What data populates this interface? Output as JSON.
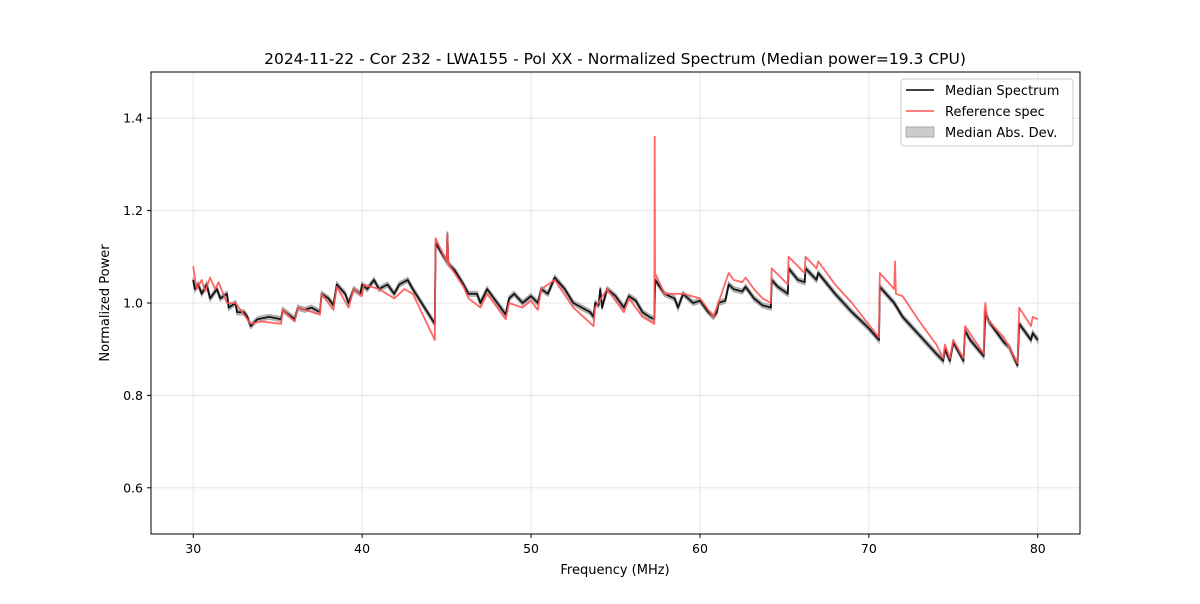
{
  "chart_data": {
    "type": "line",
    "title": "2024-11-22 - Cor 232 - LWA155 - Pol XX - Normalized Spectrum (Median power=19.3 CPU)",
    "xlabel": "Frequency (MHz)",
    "ylabel": "Normalized Power",
    "xlim": [
      27.5,
      82.5
    ],
    "ylim": [
      0.5,
      1.5
    ],
    "xticks": [
      30,
      40,
      50,
      60,
      70,
      80
    ],
    "xtick_labels": [
      "30",
      "40",
      "50",
      "60",
      "70",
      "80"
    ],
    "yticks": [
      0.6,
      0.8,
      1.0,
      1.2,
      1.4
    ],
    "ytick_labels": [
      "0.6",
      "0.8",
      "1.0",
      "1.2",
      "1.4"
    ],
    "grid": true,
    "legend_position": "top-right",
    "legend": [
      "Median Spectrum",
      "Reference spec",
      "Median Abs. Dev."
    ],
    "colors": {
      "median": "#000000",
      "reference": "#ff5555",
      "mad": "#aaaaaa"
    },
    "mad_halfwidth": 0.005,
    "series": [
      {
        "name": "Median Spectrum",
        "points": [
          [
            30.0,
            1.05
          ],
          [
            30.1,
            1.03
          ],
          [
            30.3,
            1.04
          ],
          [
            30.5,
            1.02
          ],
          [
            30.8,
            1.04
          ],
          [
            31.0,
            1.01
          ],
          [
            31.4,
            1.03
          ],
          [
            31.6,
            1.01
          ],
          [
            32.0,
            1.02
          ],
          [
            32.1,
            0.99
          ],
          [
            32.5,
            1.0
          ],
          [
            32.6,
            0.98
          ],
          [
            33.0,
            0.98
          ],
          [
            33.2,
            0.97
          ],
          [
            33.4,
            0.95
          ],
          [
            33.8,
            0.965
          ],
          [
            34.5,
            0.97
          ],
          [
            35.2,
            0.965
          ],
          [
            35.3,
            0.985
          ],
          [
            36.0,
            0.965
          ],
          [
            36.2,
            0.99
          ],
          [
            36.6,
            0.985
          ],
          [
            37.0,
            0.99
          ],
          [
            37.5,
            0.98
          ],
          [
            37.6,
            1.02
          ],
          [
            38.0,
            1.01
          ],
          [
            38.3,
            0.995
          ],
          [
            38.5,
            1.04
          ],
          [
            39.0,
            1.02
          ],
          [
            39.2,
            1.0
          ],
          [
            39.5,
            1.03
          ],
          [
            39.9,
            1.02
          ],
          [
            40.0,
            1.04
          ],
          [
            40.3,
            1.03
          ],
          [
            40.7,
            1.05
          ],
          [
            41.0,
            1.03
          ],
          [
            41.5,
            1.04
          ],
          [
            41.9,
            1.02
          ],
          [
            42.2,
            1.04
          ],
          [
            42.7,
            1.05
          ],
          [
            43.0,
            1.03
          ],
          [
            44.3,
            0.955
          ],
          [
            44.35,
            1.13
          ],
          [
            45.0,
            1.09
          ],
          [
            45.05,
            1.15
          ],
          [
            45.1,
            1.085
          ],
          [
            45.5,
            1.07
          ],
          [
            46.0,
            1.04
          ],
          [
            46.3,
            1.02
          ],
          [
            46.8,
            1.02
          ],
          [
            47.0,
            1.0
          ],
          [
            47.4,
            1.03
          ],
          [
            48.0,
            1.0
          ],
          [
            48.5,
            0.975
          ],
          [
            48.7,
            1.01
          ],
          [
            49.0,
            1.02
          ],
          [
            49.5,
            1.0
          ],
          [
            50.0,
            1.015
          ],
          [
            50.4,
            1.0
          ],
          [
            50.6,
            1.03
          ],
          [
            51.0,
            1.02
          ],
          [
            51.4,
            1.055
          ],
          [
            52.0,
            1.03
          ],
          [
            52.5,
            1.0
          ],
          [
            53.0,
            0.99
          ],
          [
            53.5,
            0.98
          ],
          [
            53.7,
            0.97
          ],
          [
            53.8,
            1.0
          ],
          [
            54.0,
            0.995
          ],
          [
            54.1,
            1.03
          ],
          [
            54.2,
            0.99
          ],
          [
            54.5,
            1.03
          ],
          [
            55.0,
            1.015
          ],
          [
            55.5,
            0.99
          ],
          [
            55.8,
            1.015
          ],
          [
            56.2,
            1.005
          ],
          [
            56.6,
            0.98
          ],
          [
            57.0,
            0.97
          ],
          [
            57.3,
            0.965
          ],
          [
            57.35,
            1.05
          ],
          [
            57.9,
            1.02
          ],
          [
            58.5,
            1.01
          ],
          [
            58.7,
            0.99
          ],
          [
            59.0,
            1.02
          ],
          [
            59.6,
            1.0
          ],
          [
            60.0,
            1.005
          ],
          [
            60.5,
            0.98
          ],
          [
            60.8,
            0.97
          ],
          [
            61.0,
            0.98
          ],
          [
            61.1,
            1.0
          ],
          [
            61.5,
            1.005
          ],
          [
            61.7,
            1.04
          ],
          [
            62.0,
            1.03
          ],
          [
            62.5,
            1.025
          ],
          [
            62.7,
            1.035
          ],
          [
            63.2,
            1.01
          ],
          [
            63.7,
            0.995
          ],
          [
            64.2,
            0.99
          ],
          [
            64.25,
            1.05
          ],
          [
            64.6,
            1.035
          ],
          [
            65.2,
            1.02
          ],
          [
            65.25,
            1.075
          ],
          [
            65.8,
            1.05
          ],
          [
            66.2,
            1.045
          ],
          [
            66.25,
            1.075
          ],
          [
            66.9,
            1.05
          ],
          [
            67.0,
            1.065
          ],
          [
            68.0,
            1.02
          ],
          [
            69.0,
            0.98
          ],
          [
            70.0,
            0.945
          ],
          [
            70.6,
            0.92
          ],
          [
            70.65,
            1.035
          ],
          [
            71.5,
            1.0
          ],
          [
            72.0,
            0.97
          ],
          [
            73.0,
            0.93
          ],
          [
            74.0,
            0.89
          ],
          [
            74.4,
            0.875
          ],
          [
            74.5,
            0.9
          ],
          [
            74.8,
            0.875
          ],
          [
            75.0,
            0.915
          ],
          [
            75.6,
            0.875
          ],
          [
            75.7,
            0.94
          ],
          [
            76.0,
            0.92
          ],
          [
            76.8,
            0.885
          ],
          [
            76.9,
            0.98
          ],
          [
            77.1,
            0.96
          ],
          [
            77.5,
            0.94
          ],
          [
            78.0,
            0.915
          ],
          [
            78.3,
            0.905
          ],
          [
            78.8,
            0.865
          ],
          [
            78.9,
            0.955
          ],
          [
            79.6,
            0.92
          ],
          [
            79.7,
            0.935
          ],
          [
            80.0,
            0.92
          ]
        ]
      },
      {
        "name": "Reference spec",
        "points": [
          [
            30.0,
            1.08
          ],
          [
            30.2,
            1.03
          ],
          [
            30.5,
            1.05
          ],
          [
            30.7,
            1.025
          ],
          [
            31.0,
            1.055
          ],
          [
            31.3,
            1.03
          ],
          [
            31.5,
            1.045
          ],
          [
            32.0,
            1.0
          ],
          [
            32.5,
            1.0
          ],
          [
            33.0,
            0.975
          ],
          [
            33.4,
            0.955
          ],
          [
            34.0,
            0.96
          ],
          [
            35.2,
            0.955
          ],
          [
            35.3,
            0.985
          ],
          [
            36.0,
            0.96
          ],
          [
            36.2,
            0.99
          ],
          [
            37.5,
            0.975
          ],
          [
            37.6,
            1.02
          ],
          [
            38.3,
            0.985
          ],
          [
            38.5,
            1.035
          ],
          [
            39.2,
            0.99
          ],
          [
            39.5,
            1.03
          ],
          [
            40.0,
            1.015
          ],
          [
            40.1,
            1.04
          ],
          [
            41.0,
            1.03
          ],
          [
            41.9,
            1.01
          ],
          [
            42.5,
            1.03
          ],
          [
            43.0,
            1.02
          ],
          [
            44.3,
            0.92
          ],
          [
            44.35,
            1.14
          ],
          [
            45.0,
            1.09
          ],
          [
            45.05,
            1.15
          ],
          [
            45.1,
            1.085
          ],
          [
            46.0,
            1.035
          ],
          [
            46.3,
            1.01
          ],
          [
            47.0,
            0.99
          ],
          [
            47.4,
            1.02
          ],
          [
            48.0,
            0.99
          ],
          [
            48.5,
            0.965
          ],
          [
            48.7,
            1.0
          ],
          [
            49.5,
            0.99
          ],
          [
            50.0,
            1.005
          ],
          [
            50.4,
            0.985
          ],
          [
            50.6,
            1.03
          ],
          [
            51.4,
            1.05
          ],
          [
            52.5,
            0.99
          ],
          [
            53.7,
            0.95
          ],
          [
            53.8,
            0.99
          ],
          [
            54.5,
            1.03
          ],
          [
            55.5,
            0.98
          ],
          [
            55.8,
            1.01
          ],
          [
            56.6,
            0.97
          ],
          [
            57.3,
            0.955
          ],
          [
            57.32,
            1.36
          ],
          [
            57.34,
            1.065
          ],
          [
            57.9,
            1.02
          ],
          [
            59.0,
            1.02
          ],
          [
            60.0,
            1.01
          ],
          [
            60.5,
            0.985
          ],
          [
            60.8,
            0.97
          ],
          [
            61.7,
            1.065
          ],
          [
            62.0,
            1.05
          ],
          [
            62.5,
            1.045
          ],
          [
            62.7,
            1.055
          ],
          [
            63.2,
            1.03
          ],
          [
            63.7,
            1.01
          ],
          [
            64.2,
            1.0
          ],
          [
            64.25,
            1.075
          ],
          [
            65.2,
            1.04
          ],
          [
            65.25,
            1.1
          ],
          [
            66.2,
            1.065
          ],
          [
            66.25,
            1.1
          ],
          [
            66.9,
            1.075
          ],
          [
            67.0,
            1.09
          ],
          [
            68.0,
            1.04
          ],
          [
            69.0,
            1.0
          ],
          [
            70.6,
            0.925
          ],
          [
            70.65,
            1.065
          ],
          [
            71.5,
            1.03
          ],
          [
            71.55,
            1.09
          ],
          [
            71.6,
            1.02
          ],
          [
            72.0,
            1.015
          ],
          [
            73.0,
            0.96
          ],
          [
            74.0,
            0.91
          ],
          [
            74.4,
            0.88
          ],
          [
            74.5,
            0.91
          ],
          [
            74.8,
            0.88
          ],
          [
            75.0,
            0.92
          ],
          [
            75.6,
            0.88
          ],
          [
            75.7,
            0.95
          ],
          [
            76.8,
            0.89
          ],
          [
            76.85,
            0.985
          ],
          [
            76.9,
            1.0
          ],
          [
            77.0,
            0.965
          ],
          [
            78.0,
            0.925
          ],
          [
            78.8,
            0.87
          ],
          [
            78.9,
            0.99
          ],
          [
            79.6,
            0.95
          ],
          [
            79.7,
            0.97
          ],
          [
            80.0,
            0.965
          ]
        ]
      }
    ]
  }
}
